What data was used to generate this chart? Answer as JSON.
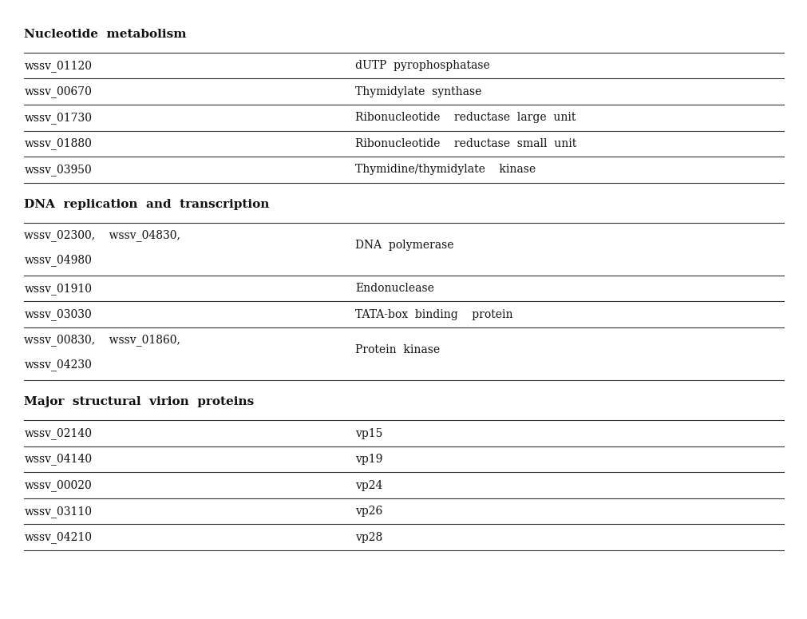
{
  "sections": [
    {
      "header": "Nucleotide  metabolism",
      "rows": [
        {
          "left": "wssv_01120",
          "right": "dUTP  pyrophosphatase",
          "multiline": false
        },
        {
          "left": "wssv_00670",
          "right": "Thymidylate  synthase",
          "multiline": false
        },
        {
          "left": "wssv_01730",
          "right": "Ribonucleotide    reductase  large  unit",
          "multiline": false
        },
        {
          "left": "wssv_01880",
          "right": "Ribonucleotide    reductase  small  unit",
          "multiline": false
        },
        {
          "left": "wssv_03950",
          "right": "Thymidine/thymidylate    kinase",
          "multiline": false
        }
      ]
    },
    {
      "header": "DNA  replication  and  transcription",
      "rows": [
        {
          "left": "wssv_02300,    wssv_04830,\n\nwssv_04980",
          "right": "DNA  polymerase",
          "multiline": true
        },
        {
          "left": "wssv_01910",
          "right": "Endonuclease",
          "multiline": false
        },
        {
          "left": "wssv_03030",
          "right": "TATA-box  binding    protein",
          "multiline": false
        },
        {
          "left": "wssv_00830,    wssv_01860,\n\nwssv_04230",
          "right": "Protein  kinase",
          "multiline": true
        }
      ]
    },
    {
      "header": "Major  structural  virion  proteins",
      "rows": [
        {
          "left": "wssv_02140",
          "right": "vp15",
          "multiline": false
        },
        {
          "left": "wssv_04140",
          "right": "vp19",
          "multiline": false
        },
        {
          "left": "wssv_00020",
          "right": "vp24",
          "multiline": false
        },
        {
          "left": "wssv_03110",
          "right": "vp26",
          "multiline": false
        },
        {
          "left": "wssv_04210",
          "right": "vp28",
          "multiline": false
        }
      ]
    }
  ],
  "col_split": 0.42,
  "font_family": "DejaVu Serif",
  "header_fontsize": 11,
  "row_fontsize": 10,
  "line_color": "#333333",
  "text_color": "#111111",
  "bg_color": "#ffffff"
}
